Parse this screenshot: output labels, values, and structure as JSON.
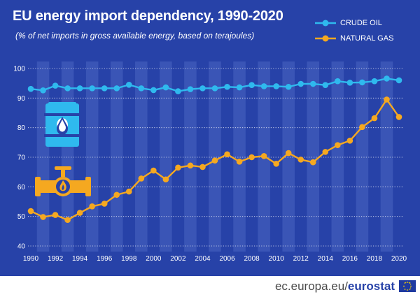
{
  "header": {
    "title": "EU energy import dependency, 1990-2020",
    "subtitle": "(% of net imports in gross available energy, based on terajoules)"
  },
  "legend": {
    "items": [
      {
        "label": "CRUDE OIL",
        "color": "#2fb9ee"
      },
      {
        "label": "NATURAL GAS",
        "color": "#f5a820"
      }
    ]
  },
  "footer": {
    "source_prefix": "ec.europa.eu/",
    "source_brand": "eurostat"
  },
  "icons": [
    "oil-barrel-icon",
    "gas-pipe-flame-icon",
    "eu-flag-icon"
  ],
  "colors": {
    "background": "#2742a8",
    "alt_column": "#3a55b6",
    "oil": "#2fb9ee",
    "gas": "#f5a820",
    "grid": "#ffffff"
  },
  "chart_data": {
    "type": "line",
    "title": "EU energy import dependency, 1990-2020",
    "subtitle": "(% of net imports in gross available energy, based on terajoules)",
    "xlabel": "",
    "ylabel": "",
    "ylim": [
      40,
      100
    ],
    "yticks": [
      40,
      50,
      60,
      70,
      80,
      90,
      100
    ],
    "xticks": [
      1990,
      1992,
      1994,
      1996,
      1998,
      2000,
      2002,
      2004,
      2006,
      2008,
      2010,
      2012,
      2014,
      2016,
      2018,
      2020
    ],
    "grid": true,
    "legend_position": "top-right",
    "x": [
      1990,
      1991,
      1992,
      1993,
      1994,
      1995,
      1996,
      1997,
      1998,
      1999,
      2000,
      2001,
      2002,
      2003,
      2004,
      2005,
      2006,
      2007,
      2008,
      2009,
      2010,
      2011,
      2012,
      2013,
      2014,
      2015,
      2016,
      2017,
      2018,
      2019,
      2020
    ],
    "series": [
      {
        "name": "CRUDE OIL",
        "color": "#2fb9ee",
        "values": [
          93.1,
          92.6,
          94.2,
          93.3,
          93.3,
          93.3,
          93.3,
          93.3,
          94.5,
          93.3,
          92.7,
          93.6,
          92.3,
          93.0,
          93.3,
          93.3,
          93.8,
          93.6,
          94.4,
          94.0,
          94.0,
          93.8,
          94.8,
          94.8,
          94.4,
          95.7,
          95.2,
          95.3,
          95.7,
          96.6,
          96.0
        ]
      },
      {
        "name": "NATURAL GAS",
        "color": "#f5a820",
        "values": [
          51.8,
          49.8,
          50.5,
          48.8,
          51.2,
          53.4,
          54.3,
          57.3,
          58.4,
          62.8,
          65.5,
          62.5,
          66.5,
          67.2,
          66.7,
          68.9,
          71.0,
          68.5,
          70.0,
          70.4,
          67.8,
          71.4,
          69.2,
          68.3,
          71.8,
          74.1,
          75.6,
          80.2,
          83.2,
          89.5,
          83.6
        ]
      }
    ]
  }
}
